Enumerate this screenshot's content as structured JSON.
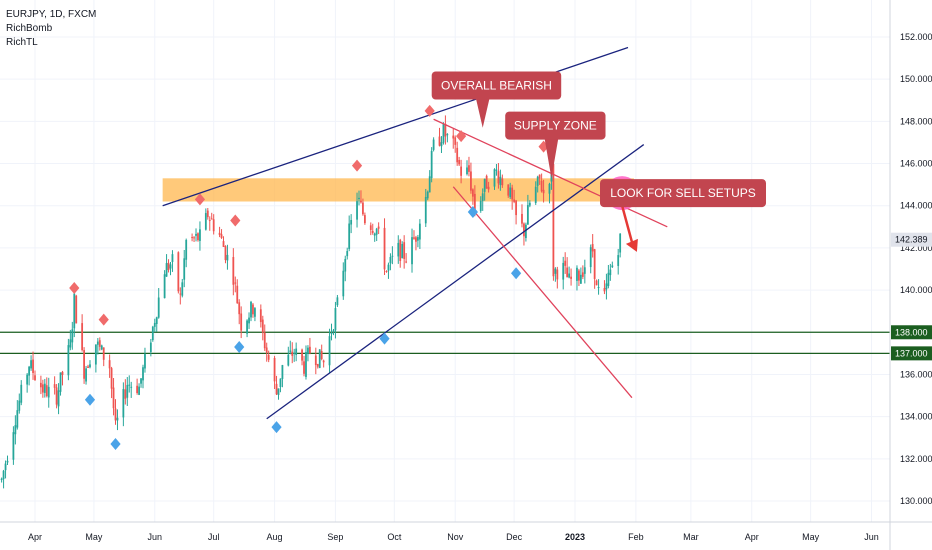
{
  "legend": {
    "symbol": "EURJPY, 1D, FXCM",
    "indicator_1": "RichBomb",
    "indicator_2": "RichTL"
  },
  "colors": {
    "up_candle": "#26a69a",
    "down_candle": "#ef5350",
    "channel_line": "#1a237e",
    "bearish_line": "#e0435c",
    "support_line": "#1b5e20",
    "supply_zone": "#ffb74d",
    "callout": "#c2454f",
    "marker_up": "#4aa3e8",
    "marker_down": "#f06b6b",
    "highlight": "#ff5ec4",
    "current_price_tag": "#e0e3eb"
  },
  "chart_data": {
    "type": "candlestick",
    "title": "EURJPY, 1D, FXCM",
    "y_axis_ticks": [
      "152.000",
      "150.000",
      "148.000",
      "146.000",
      "144.000",
      "142.000",
      "140.000",
      "138.000",
      "136.000",
      "134.000",
      "132.000",
      "130.000"
    ],
    "ylim": [
      129,
      153
    ],
    "x_axis_ticks": [
      {
        "label": "Apr",
        "date": "2022-04-01"
      },
      {
        "label": "May",
        "date": "2022-05-01"
      },
      {
        "label": "Jun",
        "date": "2022-06-01"
      },
      {
        "label": "Jul",
        "date": "2022-07-01"
      },
      {
        "label": "Aug",
        "date": "2022-08-01"
      },
      {
        "label": "Sep",
        "date": "2022-09-01"
      },
      {
        "label": "Oct",
        "date": "2022-10-01"
      },
      {
        "label": "Nov",
        "date": "2022-11-01"
      },
      {
        "label": "Dec",
        "date": "2022-12-01"
      },
      {
        "label": "2023",
        "date": "2023-01-01"
      },
      {
        "label": "Feb",
        "date": "2023-02-01"
      },
      {
        "label": "Mar",
        "date": "2023-03-01"
      },
      {
        "label": "Apr",
        "date": "2023-04-01"
      },
      {
        "label": "May",
        "date": "2023-05-01"
      },
      {
        "label": "Jun",
        "date": "2023-06-01"
      }
    ],
    "bold_x_tick": "2023",
    "price_path": [
      [
        "2022-03-15",
        131.0
      ],
      [
        "2022-03-22",
        134.0
      ],
      [
        "2022-03-29",
        136.5
      ],
      [
        "2022-04-05",
        135.3
      ],
      [
        "2022-04-12",
        135.0
      ],
      [
        "2022-04-19",
        137.4
      ],
      [
        "2022-04-21",
        139.5
      ],
      [
        "2022-04-26",
        136.2
      ],
      [
        "2022-05-02",
        137.5
      ],
      [
        "2022-05-09",
        136.4
      ],
      [
        "2022-05-12",
        133.4
      ],
      [
        "2022-05-18",
        135.6
      ],
      [
        "2022-05-24",
        135.4
      ],
      [
        "2022-05-31",
        138.2
      ],
      [
        "2022-06-06",
        141.0
      ],
      [
        "2022-06-10",
        141.3
      ],
      [
        "2022-06-14",
        139.6
      ],
      [
        "2022-06-17",
        142.3
      ],
      [
        "2022-06-24",
        142.5
      ],
      [
        "2022-06-28",
        143.6
      ],
      [
        "2022-07-04",
        142.6
      ],
      [
        "2022-07-11",
        140.7
      ],
      [
        "2022-07-15",
        138.4
      ],
      [
        "2022-07-22",
        139.3
      ],
      [
        "2022-07-28",
        137.1
      ],
      [
        "2022-08-02",
        135.1
      ],
      [
        "2022-08-05",
        136.4
      ],
      [
        "2022-08-11",
        137.1
      ],
      [
        "2022-08-16",
        136.4
      ],
      [
        "2022-08-19",
        137.1
      ],
      [
        "2022-08-26",
        136.6
      ],
      [
        "2022-09-02",
        139.3
      ],
      [
        "2022-09-07",
        142.3
      ],
      [
        "2022-09-12",
        144.4
      ],
      [
        "2022-09-16",
        143.4
      ],
      [
        "2022-09-22",
        142.9
      ],
      [
        "2022-09-27",
        140.9
      ],
      [
        "2022-10-03",
        141.9
      ],
      [
        "2022-10-07",
        141.6
      ],
      [
        "2022-10-12",
        142.6
      ],
      [
        "2022-10-17",
        144.4
      ],
      [
        "2022-10-21",
        146.8
      ],
      [
        "2022-10-26",
        147.5
      ],
      [
        "2022-10-31",
        146.8
      ],
      [
        "2022-11-04",
        145.6
      ],
      [
        "2022-11-08",
        145.6
      ],
      [
        "2022-11-11",
        143.8
      ],
      [
        "2022-11-17",
        145.1
      ],
      [
        "2022-11-22",
        145.6
      ],
      [
        "2022-11-28",
        144.8
      ],
      [
        "2022-12-02",
        143.4
      ],
      [
        "2022-12-06",
        142.8
      ],
      [
        "2022-12-09",
        144.1
      ],
      [
        "2022-12-14",
        145.2
      ],
      [
        "2022-12-16",
        144.6
      ],
      [
        "2022-12-20",
        145.7
      ],
      [
        "2022-12-21",
        140.9
      ],
      [
        "2022-12-26",
        141.0
      ],
      [
        "2022-12-29",
        140.4
      ],
      [
        "2023-01-03",
        140.7
      ],
      [
        "2023-01-06",
        141.2
      ],
      [
        "2023-01-10",
        141.9
      ],
      [
        "2023-01-12",
        140.0
      ],
      [
        "2023-01-16",
        139.6
      ],
      [
        "2023-01-18",
        140.6
      ],
      [
        "2023-01-24",
        142.4
      ]
    ],
    "horizontal_lines": [
      {
        "price": 138.0,
        "label": "138.000"
      },
      {
        "price": 137.0,
        "label": "137.000"
      }
    ],
    "current_price": {
      "price": 142.389,
      "label": "142.389"
    },
    "supply_zone": {
      "from": "2022-06-05",
      "to": "2023-01-31",
      "price_low": 144.2,
      "price_high": 145.3
    },
    "trend_lines": [
      {
        "name": "channel-top",
        "from": [
          "2022-06-05",
          144.0
        ],
        "to": [
          "2023-01-28",
          151.5
        ],
        "style": "channel"
      },
      {
        "name": "channel-bottom",
        "from": [
          "2022-07-28",
          133.9
        ],
        "to": [
          "2023-02-05",
          146.9
        ],
        "style": "channel"
      },
      {
        "name": "bearish-line-upper",
        "from": [
          "2022-10-21",
          148.1
        ],
        "to": [
          "2023-02-17",
          143.0
        ],
        "style": "bearish"
      },
      {
        "name": "bearish-line-lower",
        "from": [
          "2022-10-31",
          144.9
        ],
        "to": [
          "2023-01-30",
          134.9
        ],
        "style": "bearish"
      }
    ],
    "signal_markers": [
      {
        "date": "2022-04-21",
        "price": 140.1,
        "type": "down"
      },
      {
        "date": "2022-05-06",
        "price": 138.6,
        "type": "down"
      },
      {
        "date": "2022-06-24",
        "price": 144.3,
        "type": "down"
      },
      {
        "date": "2022-07-12",
        "price": 143.3,
        "type": "down"
      },
      {
        "date": "2022-09-12",
        "price": 145.9,
        "type": "down"
      },
      {
        "date": "2022-10-19",
        "price": 148.5,
        "type": "down"
      },
      {
        "date": "2022-11-04",
        "price": 147.3,
        "type": "down"
      },
      {
        "date": "2022-12-16",
        "price": 146.8,
        "type": "down"
      },
      {
        "date": "2022-04-29",
        "price": 134.8,
        "type": "up"
      },
      {
        "date": "2022-05-12",
        "price": 132.7,
        "type": "up"
      },
      {
        "date": "2022-07-14",
        "price": 137.3,
        "type": "up"
      },
      {
        "date": "2022-08-02",
        "price": 133.5,
        "type": "up"
      },
      {
        "date": "2022-09-26",
        "price": 137.7,
        "type": "up"
      },
      {
        "date": "2022-11-10",
        "price": 143.7,
        "type": "up"
      },
      {
        "date": "2022-12-02",
        "price": 140.8,
        "type": "up"
      }
    ],
    "callouts": [
      {
        "text": "OVERALL BEARISH",
        "box_date": "2022-11-22",
        "box_price": 149.7,
        "pointer": [
          "2022-11-15",
          147.7
        ]
      },
      {
        "text": "SUPPLY ZONE",
        "box_date": "2022-12-22",
        "box_price": 147.8,
        "pointer": [
          "2022-12-20",
          145.3
        ]
      },
      {
        "text": "LOOK FOR SELL SETUPS",
        "box_date": "2023-02-25",
        "box_price": 144.6,
        "pointer": [
          "2023-01-25",
          144.6
        ]
      }
    ],
    "highlight_circle": {
      "date": "2023-01-25",
      "price": 144.6
    },
    "forecast_arrow": {
      "from": [
        "2023-01-25",
        144.0
      ],
      "to": [
        "2023-01-31",
        142.0
      ]
    }
  }
}
